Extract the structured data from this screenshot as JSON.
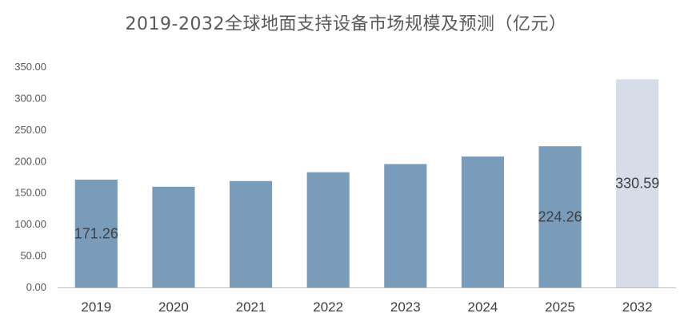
{
  "chart_data": {
    "type": "bar",
    "title": "2019-2032全球地面支持设备市场规模及预测（亿元）",
    "xlabel": "",
    "ylabel": "",
    "categories": [
      "2019",
      "2020",
      "2021",
      "2022",
      "2023",
      "2024",
      "2025",
      "2032"
    ],
    "values": [
      171.26,
      160,
      169,
      183,
      196,
      208,
      224.26,
      330.59
    ],
    "forecast_categories": [
      "2032"
    ],
    "data_labels": [
      {
        "category": "2019",
        "text": "171.26"
      },
      {
        "category": "2025",
        "text": "224.26"
      },
      {
        "category": "2032",
        "text": "330.59"
      }
    ],
    "ylim": [
      0,
      350
    ],
    "yticks": [
      "0.00",
      "50.00",
      "100.00",
      "150.00",
      "200.00",
      "250.00",
      "300.00",
      "350.00"
    ],
    "grid": false,
    "legend": "none",
    "colors": {
      "actual": "#7a9cbb",
      "forecast": "#d6dde8",
      "axis": "#bfbfbf"
    }
  }
}
